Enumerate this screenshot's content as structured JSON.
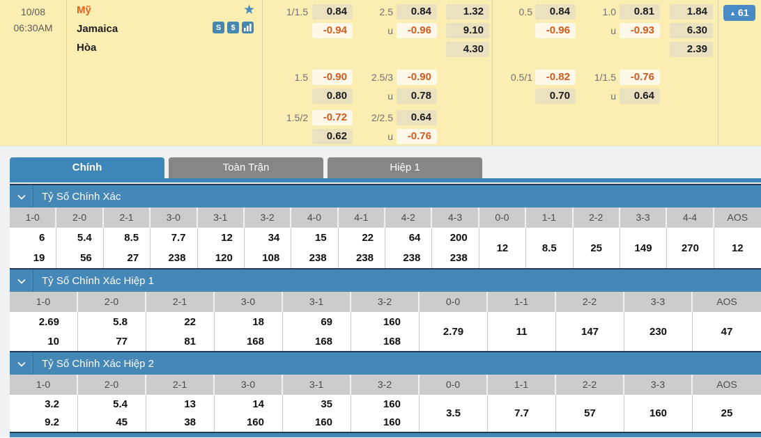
{
  "colors": {
    "accent_blue": "#3e86b8",
    "header_blue": "#4587b6",
    "cream_bg": "#fbeeb2",
    "odds_pos_bg": "#e9e1bf",
    "odds_neg_bg": "#fdf8e7",
    "odds_neg_text": "#d15b1e",
    "team_home_orange": "#e55f1f",
    "tab_inactive": "#868686"
  },
  "match": {
    "date": "10/08",
    "time": "06:30AM",
    "home": "Mỹ",
    "away": "Jamaica",
    "draw_label": "Hòa",
    "star_glyph": "★",
    "dollar_glyph": "$",
    "stats_glyph": "S",
    "badge": {
      "arrow": "▲",
      "count": "61"
    }
  },
  "odds": {
    "full_time": {
      "handicap_rows": [
        {
          "line": "1/1.5",
          "cells": [
            "0.84",
            "-0.94"
          ]
        },
        {
          "line": "1.5",
          "cells": [
            "-0.90",
            "0.80"
          ]
        },
        {
          "line": "1.5/2",
          "cells": [
            "-0.72",
            "0.62"
          ]
        }
      ],
      "over_under_rows": [
        {
          "line": "2.5",
          "under_label": "u",
          "cells": [
            "0.84",
            "-0.96"
          ]
        },
        {
          "line": "2.5/3",
          "under_label": "u",
          "cells": [
            "-0.90",
            "0.78"
          ]
        },
        {
          "line": "2/2.5",
          "under_label": "u",
          "cells": [
            "0.64",
            "-0.76"
          ]
        }
      ],
      "one_x_two": [
        "1.32",
        "9.10",
        "4.30"
      ]
    },
    "first_half": {
      "handicap_rows": [
        {
          "line": "0.5",
          "cells": [
            "0.84",
            "-0.96"
          ]
        },
        {
          "line": "0.5/1",
          "cells": [
            "-0.82",
            "0.70"
          ]
        }
      ],
      "over_under_rows": [
        {
          "line": "1.0",
          "under_label": "u",
          "cells": [
            "0.81",
            "-0.93"
          ]
        },
        {
          "line": "1/1.5",
          "under_label": "u",
          "cells": [
            "-0.76",
            "0.64"
          ]
        }
      ],
      "one_x_two": [
        "1.84",
        "6.30",
        "2.39"
      ]
    }
  },
  "tabs": [
    {
      "label": "Chính",
      "active": true
    },
    {
      "label": "Toàn Trận",
      "active": false
    },
    {
      "label": "Hiệp 1",
      "active": false
    }
  ],
  "sections": [
    {
      "title": "Tỷ Số Chính Xác",
      "columns": [
        {
          "label": "1-0",
          "values": [
            "6",
            "19"
          ]
        },
        {
          "label": "2-0",
          "values": [
            "5.4",
            "56"
          ]
        },
        {
          "label": "2-1",
          "values": [
            "8.5",
            "27"
          ]
        },
        {
          "label": "3-0",
          "values": [
            "7.7",
            "238"
          ]
        },
        {
          "label": "3-1",
          "values": [
            "12",
            "120"
          ]
        },
        {
          "label": "3-2",
          "values": [
            "34",
            "108"
          ]
        },
        {
          "label": "4-0",
          "values": [
            "15",
            "238"
          ]
        },
        {
          "label": "4-1",
          "values": [
            "22",
            "238"
          ]
        },
        {
          "label": "4-2",
          "values": [
            "64",
            "238"
          ]
        },
        {
          "label": "4-3",
          "values": [
            "200",
            "238"
          ]
        },
        {
          "label": "0-0",
          "values": [
            "12"
          ]
        },
        {
          "label": "1-1",
          "values": [
            "8.5"
          ]
        },
        {
          "label": "2-2",
          "values": [
            "25"
          ]
        },
        {
          "label": "3-3",
          "values": [
            "149"
          ]
        },
        {
          "label": "4-4",
          "values": [
            "270"
          ]
        },
        {
          "label": "AOS",
          "values": [
            "12"
          ]
        }
      ]
    },
    {
      "title": "Tỷ Số Chính Xác Hiệp 1",
      "columns": [
        {
          "label": "1-0",
          "values": [
            "2.69",
            "10"
          ]
        },
        {
          "label": "2-0",
          "values": [
            "5.8",
            "77"
          ]
        },
        {
          "label": "2-1",
          "values": [
            "22",
            "81"
          ]
        },
        {
          "label": "3-0",
          "values": [
            "18",
            "168"
          ]
        },
        {
          "label": "3-1",
          "values": [
            "69",
            "168"
          ]
        },
        {
          "label": "3-2",
          "values": [
            "160",
            "168"
          ]
        },
        {
          "label": "0-0",
          "values": [
            "2.79"
          ]
        },
        {
          "label": "1-1",
          "values": [
            "11"
          ]
        },
        {
          "label": "2-2",
          "values": [
            "147"
          ]
        },
        {
          "label": "3-3",
          "values": [
            "230"
          ]
        },
        {
          "label": "AOS",
          "values": [
            "47"
          ]
        }
      ]
    },
    {
      "title": "Tỷ Số Chính Xác Hiệp 2",
      "columns": [
        {
          "label": "1-0",
          "values": [
            "3.2",
            "9.2"
          ]
        },
        {
          "label": "2-0",
          "values": [
            "5.4",
            "45"
          ]
        },
        {
          "label": "2-1",
          "values": [
            "13",
            "38"
          ]
        },
        {
          "label": "3-0",
          "values": [
            "14",
            "160"
          ]
        },
        {
          "label": "3-1",
          "values": [
            "35",
            "160"
          ]
        },
        {
          "label": "3-2",
          "values": [
            "160",
            "160"
          ]
        },
        {
          "label": "0-0",
          "values": [
            "3.5"
          ]
        },
        {
          "label": "1-1",
          "values": [
            "7.7"
          ]
        },
        {
          "label": "2-2",
          "values": [
            "57"
          ]
        },
        {
          "label": "3-3",
          "values": [
            "160"
          ]
        },
        {
          "label": "AOS",
          "values": [
            "25"
          ]
        }
      ]
    }
  ]
}
